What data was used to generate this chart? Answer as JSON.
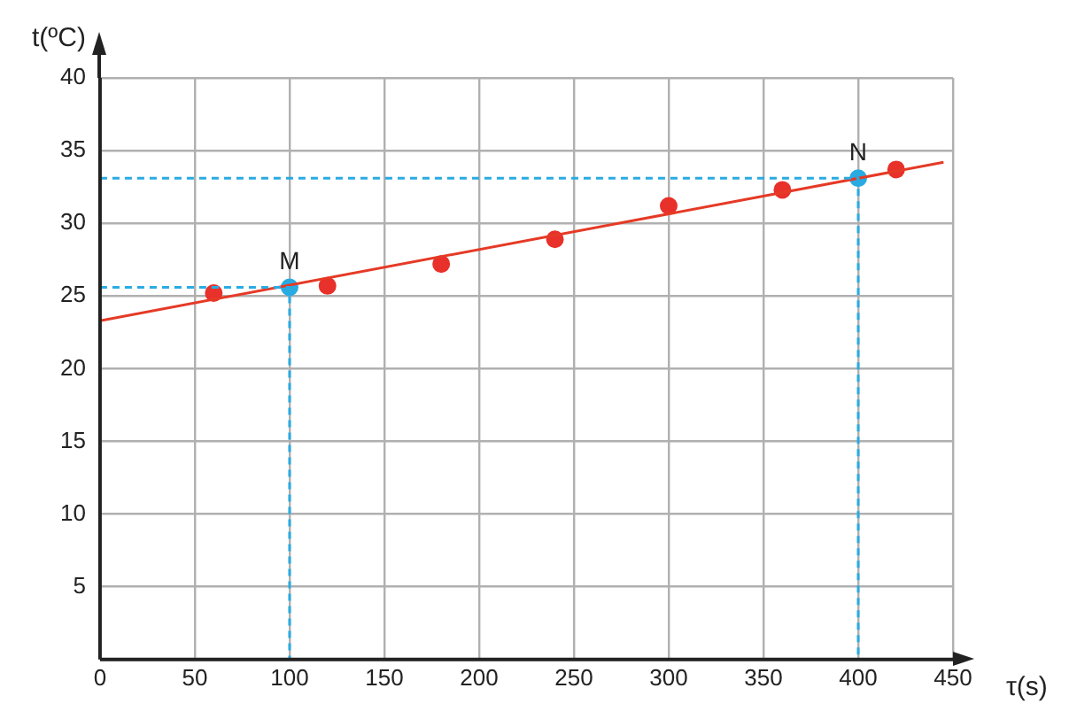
{
  "chart_data": {
    "type": "scatter",
    "xlabel": "τ(s)",
    "ylabel": "t(ºC)",
    "xlim": [
      0,
      450
    ],
    "ylim": [
      0,
      40
    ],
    "xticks": [
      0,
      50,
      100,
      150,
      200,
      250,
      300,
      350,
      400,
      450
    ],
    "yticks": [
      {
        "value": 0,
        "label": null
      },
      5,
      10,
      15,
      20,
      25,
      30,
      35,
      40
    ],
    "grid": true,
    "legend": false,
    "series": [
      {
        "type": "line",
        "color": "#29abe2",
        "line_style": "dashed",
        "marker": "none",
        "x": [
          0,
          100,
          100
        ],
        "values": [
          25.6,
          25.6,
          0
        ]
      },
      {
        "type": "line",
        "color": "#29abe2",
        "line_style": "dashed",
        "marker": "none",
        "x": [
          0,
          400,
          400
        ],
        "values": [
          33.1,
          33.1,
          0
        ]
      },
      {
        "type": "line",
        "color": "#e53a26",
        "line_style": "solid",
        "marker": "none",
        "x": [
          0,
          445
        ],
        "values": [
          23.3,
          34.2
        ]
      },
      {
        "type": "scatter",
        "color": "#e8312a",
        "marker": "circle",
        "x": [
          60,
          120,
          180,
          240,
          300,
          360,
          420
        ],
        "values": [
          25.2,
          25.7,
          27.2,
          28.9,
          31.2,
          32.3,
          33.7
        ]
      },
      {
        "type": "scatter",
        "color": "#29abe2",
        "marker": "circle",
        "x": [
          100,
          400
        ],
        "values": [
          25.6,
          33.1
        ]
      }
    ],
    "annotations": [
      {
        "text": "M",
        "x": 100,
        "y": 25.6
      },
      {
        "text": "N",
        "x": 400,
        "y": 33.1
      }
    ]
  }
}
